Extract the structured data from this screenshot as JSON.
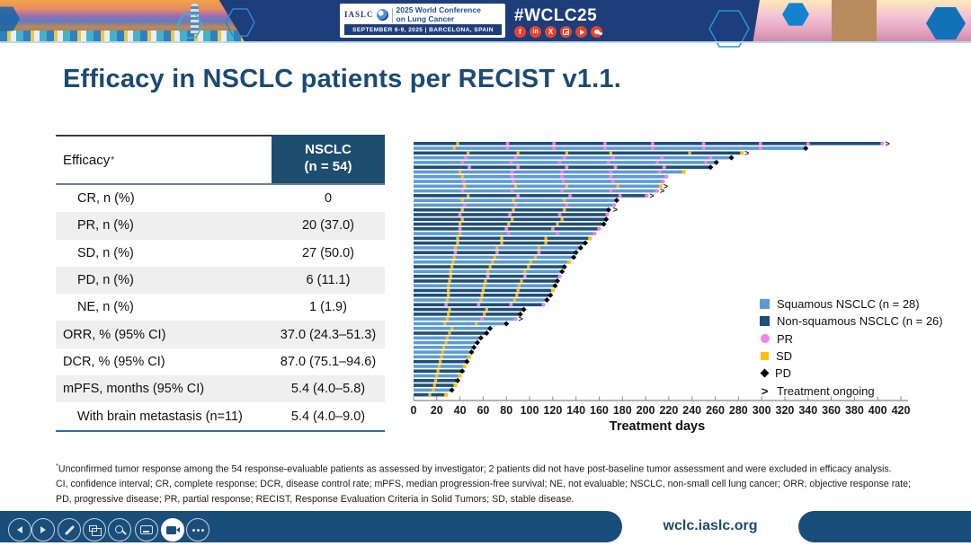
{
  "header": {
    "iaslc_label": "IASLC",
    "conference_title_line1": "2025 World Conference",
    "conference_title_line2": "on Lung Cancer",
    "conference_dates": "SEPTEMBER 6-9, 2025  |  BARCELONA, SPAIN",
    "hashtag": "#WCLC25",
    "social_icons": [
      "facebook-icon",
      "linkedin-icon",
      "x-icon",
      "instagram-icon",
      "youtube-icon",
      "wechat-icon"
    ]
  },
  "slide": {
    "title": "Efficacy in NSCLC patients per RECIST v1.1.",
    "table": {
      "header": {
        "col1": "Efficacy",
        "col1_sup": "*",
        "col2_line1": "NSCLC",
        "col2_line2": "(n = 54)"
      },
      "rows": [
        {
          "label": "CR, n (%)",
          "value": "0"
        },
        {
          "label": "PR, n (%)",
          "value": "20 (37.0)"
        },
        {
          "label": "SD, n (%)",
          "value": "27 (50.0)"
        },
        {
          "label": "PD, n (%)",
          "value": "6 (11.1)"
        },
        {
          "label": "NE, n (%)",
          "value": "1 (1.9)"
        },
        {
          "label": "ORR, % (95% CI)",
          "value": "37.0 (24.3–51.3)"
        },
        {
          "label": "DCR, % (95% CI)",
          "value": "87.0 (75.1–94.6)"
        },
        {
          "label": "mPFS, months (95% CI)",
          "value": "5.4 (4.0–5.8)"
        },
        {
          "label": "With brain metastasis (n=11)",
          "value": "5.4 (4.0–9.0)"
        }
      ]
    },
    "footnote_sup": "*",
    "footnote1": "Unconfirmed tumor response among the 54 response-evaluable patients as assessed by investigator; 2 patients did not have post-baseline tumor assessment and were excluded in efficacy analysis.",
    "footnote2": "CI, confidence interval; CR, complete response; DCR, disease control rate; mPFS, median progression-free survival; NE, not evaluable; NSCLC, non-small cell lung cancer; ORR, objective response rate; PD, progressive disease; PR, partial response; RECIST, Response Evaluation Criteria in Solid Tumors; SD, stable disease."
  },
  "chart_data": {
    "type": "swimmer",
    "xlabel": "Treatment days",
    "xlim": [
      0,
      420
    ],
    "xticks": [
      0,
      20,
      40,
      60,
      80,
      100,
      120,
      140,
      160,
      180,
      200,
      220,
      240,
      260,
      280,
      300,
      320,
      340,
      360,
      380,
      400,
      420
    ],
    "colors": {
      "squamous": "#5b9bd5",
      "non_squamous": "#1f4e79",
      "pr": "#ee82ee",
      "sd": "#ffc000",
      "pd": "#000000"
    },
    "legend": [
      {
        "label": "Squamous NSCLC (n = 28)",
        "swatch": "square",
        "color": "#5b9bd5"
      },
      {
        "label": "Non-squamous NSCLC (n = 26)",
        "swatch": "square",
        "color": "#1f4e79"
      },
      {
        "label": "PR",
        "swatch": "circle",
        "color": "#ee82ee"
      },
      {
        "label": "SD",
        "swatch": "square",
        "color": "#ffc000"
      },
      {
        "label": "PD",
        "swatch": "diamond",
        "color": "#000000"
      },
      {
        "label": "Treatment ongoing",
        "swatch": "arrow",
        "color": "#000000"
      }
    ],
    "bars": [
      {
        "g": "N",
        "d": 404,
        "end": "PR",
        "go": true,
        "sd": [
          38
        ],
        "pr": [
          81,
          121,
          165,
          206,
          250,
          299,
          340
        ]
      },
      {
        "g": "S",
        "d": 338,
        "end": "PD",
        "sd": [
          35
        ],
        "pr": [
          81,
          121,
          165,
          206,
          250,
          299
        ]
      },
      {
        "g": "N",
        "d": 283,
        "end": "SD",
        "go": true,
        "sd": [
          47,
          90,
          132,
          170,
          238
        ]
      },
      {
        "g": "S",
        "d": 274,
        "end": "PD",
        "pr": [
          45,
          88,
          130,
          172,
          214,
          256
        ]
      },
      {
        "g": "S",
        "d": 261,
        "end": "PD",
        "pr": [
          42,
          84,
          126,
          168,
          210,
          252
        ]
      },
      {
        "g": "N",
        "d": 256,
        "end": "PD",
        "pr": [
          48,
          90,
          132,
          174,
          216
        ]
      },
      {
        "g": "S",
        "d": 233,
        "end": "SD",
        "sd": [
          40
        ],
        "pr": [
          85,
          128,
          170,
          212
        ]
      },
      {
        "g": "S",
        "d": 218,
        "end": "PR",
        "sd": [
          42
        ],
        "pr": [
          85,
          128,
          170
        ]
      },
      {
        "g": "S",
        "d": 215,
        "end": "PR",
        "pr": [
          43,
          86,
          129,
          172
        ]
      },
      {
        "g": "S",
        "d": 213,
        "end": "SD",
        "go": true,
        "sd": [
          44,
          88,
          132,
          176
        ]
      },
      {
        "g": "S",
        "d": 210,
        "end": "PR",
        "go": true,
        "pr": [
          42,
          85,
          128,
          170
        ]
      },
      {
        "g": "N",
        "d": 201,
        "end": "PR",
        "go": true,
        "sd": [
          47
        ],
        "pr": [
          90,
          135,
          178
        ]
      },
      {
        "g": "S",
        "d": 175,
        "end": "PD",
        "sd": [
          42,
          86,
          130
        ]
      },
      {
        "g": "S",
        "d": 173,
        "end": "PR",
        "pr": [
          44,
          88,
          132
        ]
      },
      {
        "g": "N",
        "d": 168,
        "end": "PD",
        "go": true,
        "sd": [
          42,
          86,
          130
        ]
      },
      {
        "g": "N",
        "d": 167,
        "end": "PR",
        "pr": [
          40,
          83,
          126
        ]
      },
      {
        "g": "N",
        "d": 166,
        "end": "PD",
        "sd": [
          42,
          85,
          128
        ]
      },
      {
        "g": "N",
        "d": 164,
        "end": "PD",
        "sd": [
          40,
          82,
          124
        ]
      },
      {
        "g": "N",
        "d": 160,
        "end": "PR",
        "pr": [
          40,
          80,
          120
        ]
      },
      {
        "g": "S",
        "d": 156,
        "end": "PR",
        "sd": [
          40
        ],
        "pr": [
          82,
          124
        ]
      },
      {
        "g": "N",
        "d": 152,
        "end": "SD",
        "sd": [
          38,
          76,
          114
        ]
      },
      {
        "g": "N",
        "d": 148,
        "end": "PD",
        "sd": [
          38,
          76,
          114
        ]
      },
      {
        "g": "S",
        "d": 144,
        "end": "PD",
        "sd": [
          36,
          72,
          108
        ]
      },
      {
        "g": "N",
        "d": 140,
        "end": "PD",
        "pr": [
          36,
          72,
          108
        ]
      },
      {
        "g": "S",
        "d": 138,
        "end": "PD",
        "sd": [
          35,
          70,
          105
        ]
      },
      {
        "g": "S",
        "d": 134,
        "end": "SD",
        "sd": [
          34,
          68,
          101
        ]
      },
      {
        "g": "N",
        "d": 130,
        "end": "PD",
        "sd": [
          33,
          66,
          99
        ]
      },
      {
        "g": "S",
        "d": 128,
        "end": "PD",
        "sd": [
          32,
          64,
          96
        ]
      },
      {
        "g": "N",
        "d": 126,
        "end": "PR",
        "sd": [
          32
        ],
        "pr": [
          64,
          96
        ]
      },
      {
        "g": "N",
        "d": 124,
        "end": "PD",
        "sd": [
          31,
          62,
          93
        ]
      },
      {
        "g": "S",
        "d": 122,
        "end": "PD",
        "sd": [
          30,
          61,
          91
        ]
      },
      {
        "g": "N",
        "d": 120,
        "end": "SD",
        "sd": [
          30,
          60,
          90
        ]
      },
      {
        "g": "N",
        "d": 118,
        "end": "PD",
        "sd": [
          30,
          59,
          89
        ]
      },
      {
        "g": "S",
        "d": 115,
        "end": "PD",
        "sd": [
          29,
          58,
          87
        ]
      },
      {
        "g": "N",
        "d": 112,
        "end": "PR",
        "pr": [
          28,
          56,
          84
        ]
      },
      {
        "g": "N",
        "d": 95,
        "end": "PD",
        "sd": [
          31,
          63
        ]
      },
      {
        "g": "N",
        "d": 92,
        "end": "PD",
        "sd": [
          30,
          61
        ]
      },
      {
        "g": "S",
        "d": 88,
        "end": "PR",
        "go": true,
        "sd": [
          29
        ],
        "pr": [
          59
        ]
      },
      {
        "g": "S",
        "d": 80,
        "end": "PD",
        "sd": [
          27,
          54
        ]
      },
      {
        "g": "S",
        "d": 66,
        "end": "PD",
        "sd": [
          33
        ]
      },
      {
        "g": "N",
        "d": 63,
        "end": "PD",
        "sd": [
          31
        ]
      },
      {
        "g": "S",
        "d": 58,
        "end": "PD",
        "sd": [
          29
        ]
      },
      {
        "g": "S",
        "d": 55,
        "end": "PD",
        "sd": [
          28
        ]
      },
      {
        "g": "S",
        "d": 52,
        "end": "PD",
        "sd": [
          26
        ]
      },
      {
        "g": "S",
        "d": 50,
        "end": "PD",
        "sd": [
          25
        ]
      },
      {
        "g": "S",
        "d": 48,
        "end": "SD",
        "sd": [
          24
        ]
      },
      {
        "g": "N",
        "d": 46,
        "end": "PD",
        "sd": [
          23
        ]
      },
      {
        "g": "S",
        "d": 44,
        "end": "SD",
        "sd": [
          22
        ]
      },
      {
        "g": "N",
        "d": 42,
        "end": "PD",
        "sd": [
          21
        ]
      },
      {
        "g": "S",
        "d": 40,
        "end": "SD",
        "sd": [
          20
        ]
      },
      {
        "g": "N",
        "d": 38,
        "end": "PD",
        "sd": [
          19
        ]
      },
      {
        "g": "N",
        "d": 36,
        "end": "SD",
        "sd": [
          18
        ]
      },
      {
        "g": "S",
        "d": 33,
        "end": "PD",
        "sd": [
          17
        ]
      },
      {
        "g": "N",
        "d": 28,
        "end": "SD",
        "sd": [
          14
        ]
      }
    ]
  },
  "footer": {
    "url": "wclc.iaslc.org",
    "toolbar": [
      "previous",
      "next",
      "pen",
      "see-all-slides",
      "zoom",
      "captions",
      "camera",
      "more-options"
    ]
  }
}
